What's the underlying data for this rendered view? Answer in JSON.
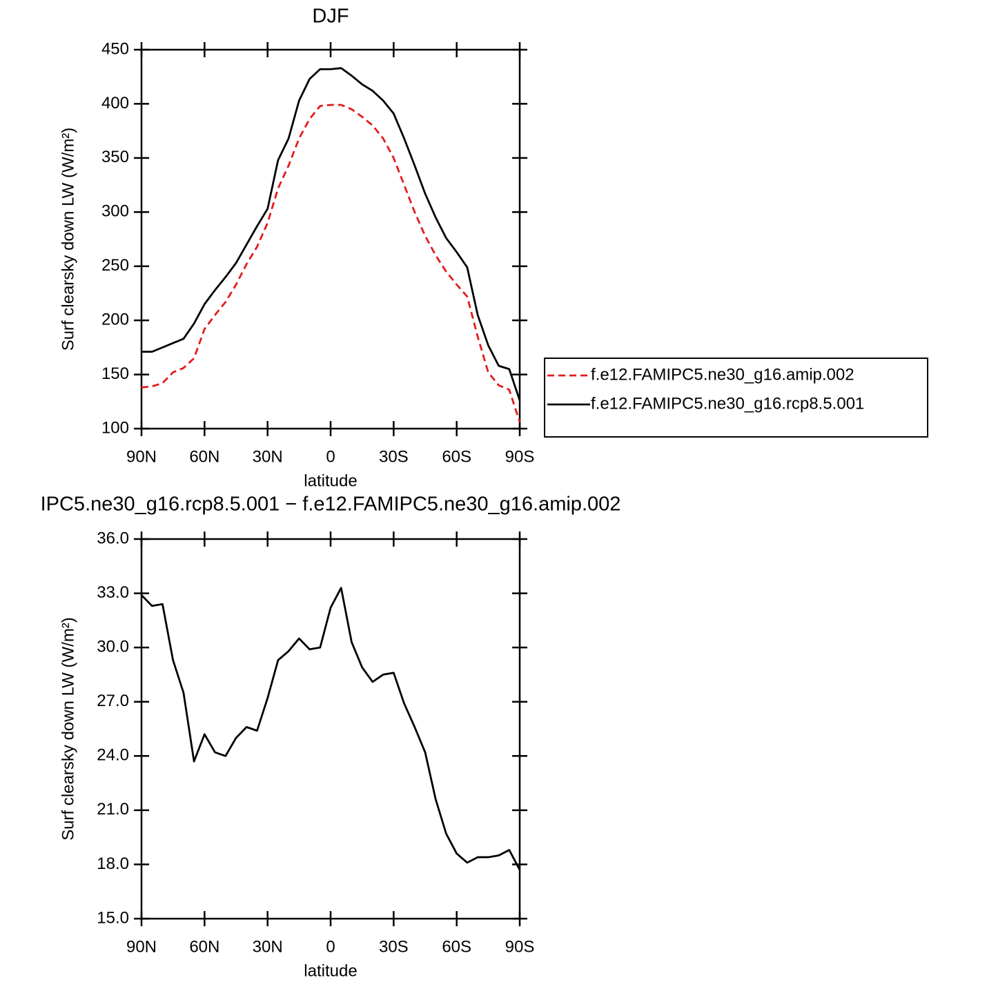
{
  "chart_data": [
    {
      "type": "line",
      "title": "DJF",
      "x_label": "latitude",
      "y_label": "Surf clearsky down LW (W/m²)",
      "x": [
        90,
        85,
        80,
        75,
        70,
        65,
        60,
        55,
        50,
        45,
        40,
        35,
        30,
        25,
        20,
        15,
        10,
        5,
        0,
        -5,
        -10,
        -15,
        -20,
        -25,
        -30,
        -35,
        -40,
        -45,
        -50,
        -55,
        -60,
        -65,
        -70,
        -75,
        -80,
        -85,
        -90
      ],
      "xlim": [
        90,
        -90
      ],
      "xticks": [
        {
          "value": 90,
          "label": "90N"
        },
        {
          "value": 60,
          "label": "60N"
        },
        {
          "value": 30,
          "label": "30N"
        },
        0,
        {
          "value": -30,
          "label": "30S"
        },
        {
          "value": -60,
          "label": "60S"
        },
        {
          "value": -90,
          "label": "90S"
        }
      ],
      "ylim": [
        100,
        450
      ],
      "yticks": [
        100,
        150,
        200,
        250,
        300,
        350,
        400,
        450
      ],
      "legend": "right",
      "series": [
        {
          "name": "f.e12.FAMIPC5.ne30_g16.amip.002",
          "color": "#e41a1c",
          "linestyle": "dashed",
          "values": [
            138,
            139,
            142,
            152,
            156,
            165,
            192,
            205,
            217,
            233,
            252,
            268,
            290,
            322,
            343,
            368,
            386,
            398,
            399,
            399,
            395,
            388,
            380,
            368,
            350,
            325,
            300,
            278,
            260,
            245,
            233,
            222,
            185,
            152,
            140,
            136,
            106
          ]
        },
        {
          "name": "f.e12.FAMIPC5.ne30_g16.rcp8.5.001",
          "color": "#000000",
          "linestyle": "solid",
          "values": [
            171,
            171,
            175,
            179,
            183,
            197,
            215,
            228,
            240,
            253,
            270,
            287,
            303,
            348,
            368,
            403,
            423,
            432,
            432,
            433,
            426,
            418,
            412,
            403,
            391,
            368,
            343,
            317,
            295,
            276,
            263,
            249,
            205,
            177,
            158,
            155,
            126
          ]
        }
      ]
    },
    {
      "type": "line",
      "title": "IPC5.ne30_g16.rcp8.5.001 − f.e12.FAMIPC5.ne30_g16.amip.002",
      "x_label": "latitude",
      "y_label": "Surf clearsky down LW (W/m²)",
      "x": [
        90,
        85,
        80,
        75,
        70,
        65,
        60,
        55,
        50,
        45,
        40,
        35,
        30,
        25,
        20,
        15,
        10,
        5,
        0,
        -5,
        -10,
        -15,
        -20,
        -25,
        -30,
        -35,
        -40,
        -45,
        -50,
        -55,
        -60,
        -65,
        -70,
        -75,
        -80,
        -85,
        -90
      ],
      "xlim": [
        90,
        -90
      ],
      "xticks": [
        {
          "value": 90,
          "label": "90N"
        },
        {
          "value": 60,
          "label": "60N"
        },
        {
          "value": 30,
          "label": "30N"
        },
        0,
        {
          "value": -30,
          "label": "30S"
        },
        {
          "value": -60,
          "label": "60S"
        },
        {
          "value": -90,
          "label": "90S"
        }
      ],
      "ylim": [
        15,
        36
      ],
      "yticks": [
        {
          "value": 15,
          "label": "15.0"
        },
        {
          "value": 18,
          "label": "18.0"
        },
        {
          "value": 21,
          "label": "21.0"
        },
        {
          "value": 24,
          "label": "24.0"
        },
        {
          "value": 27,
          "label": "27.0"
        },
        {
          "value": 30,
          "label": "30.0"
        },
        {
          "value": 33,
          "label": "33.0"
        },
        {
          "value": 36,
          "label": "36.0"
        }
      ],
      "series": [
        {
          "color": "#000000",
          "linestyle": "solid",
          "values": [
            32.9,
            32.3,
            32.4,
            29.3,
            27.5,
            23.7,
            25.2,
            24.2,
            24.0,
            25.0,
            25.6,
            25.4,
            27.2,
            29.3,
            29.8,
            30.5,
            29.9,
            30.0,
            32.2,
            33.3,
            30.3,
            28.9,
            28.1,
            28.5,
            28.6,
            26.9,
            25.6,
            24.2,
            21.6,
            19.7,
            18.6,
            18.1,
            18.4,
            18.4,
            18.5,
            18.8,
            17.7
          ]
        }
      ]
    }
  ]
}
